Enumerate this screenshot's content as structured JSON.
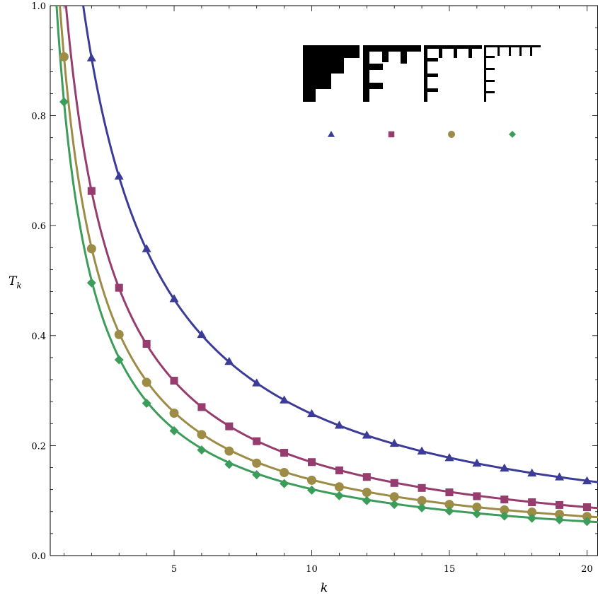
{
  "chart_data": {
    "type": "line",
    "title": "",
    "xlabel": "k",
    "ylabel_main": "T",
    "ylabel_sub": "k",
    "xlim": [
      0.5,
      20.4
    ],
    "ylim": [
      0.0,
      1.0
    ],
    "x_ticks": [
      5,
      10,
      15,
      20
    ],
    "x_tick_labels": [
      "5",
      "10",
      "15",
      "20"
    ],
    "y_ticks": [
      0.0,
      0.2,
      0.4,
      0.6,
      0.8,
      1.0
    ],
    "y_tick_labels": [
      "0.0",
      "0.2",
      "0.4",
      "0.6",
      "0.8",
      "1.0"
    ],
    "grid": false,
    "legend_position": "top-right",
    "legend_style": "staircase diagrams above marker symbols",
    "series": [
      {
        "marker": "triangle",
        "color": "#3c3c98",
        "x": [
          2,
          3,
          4,
          5,
          6,
          7,
          8,
          9,
          10,
          11,
          12,
          13,
          14,
          15,
          16,
          17,
          18,
          19,
          20
        ],
        "values": [
          0.905,
          0.69,
          0.558,
          0.467,
          0.402,
          0.353,
          0.314,
          0.283,
          0.258,
          0.237,
          0.219,
          0.204,
          0.19,
          0.178,
          0.168,
          0.159,
          0.15,
          0.143,
          0.136
        ]
      },
      {
        "marker": "square",
        "color": "#963c6e",
        "x": [
          2,
          3,
          4,
          5,
          6,
          7,
          8,
          9,
          10,
          11,
          12,
          13,
          14,
          15,
          16,
          17,
          18,
          19,
          20
        ],
        "values": [
          0.663,
          0.487,
          0.385,
          0.318,
          0.27,
          0.235,
          0.208,
          0.187,
          0.17,
          0.155,
          0.143,
          0.132,
          0.123,
          0.115,
          0.108,
          0.102,
          0.097,
          0.092,
          0.088
        ]
      },
      {
        "marker": "circle",
        "color": "#9c8c46",
        "x": [
          1,
          2,
          3,
          4,
          5,
          6,
          7,
          8,
          9,
          10,
          11,
          12,
          13,
          14,
          15,
          16,
          17,
          18,
          19,
          20
        ],
        "values": [
          0.907,
          0.558,
          0.402,
          0.315,
          0.259,
          0.22,
          0.19,
          0.168,
          0.151,
          0.137,
          0.125,
          0.115,
          0.107,
          0.1,
          0.093,
          0.088,
          0.083,
          0.079,
          0.075,
          0.071
        ]
      },
      {
        "marker": "diamond",
        "color": "#3c9c5a",
        "x": [
          1,
          2,
          3,
          4,
          5,
          6,
          7,
          8,
          9,
          10,
          11,
          12,
          13,
          14,
          15,
          16,
          17,
          18,
          19,
          20
        ],
        "values": [
          0.825,
          0.496,
          0.356,
          0.277,
          0.227,
          0.192,
          0.166,
          0.147,
          0.131,
          0.119,
          0.109,
          0.1,
          0.093,
          0.087,
          0.081,
          0.076,
          0.072,
          0.068,
          0.065,
          0.062
        ]
      }
    ]
  }
}
